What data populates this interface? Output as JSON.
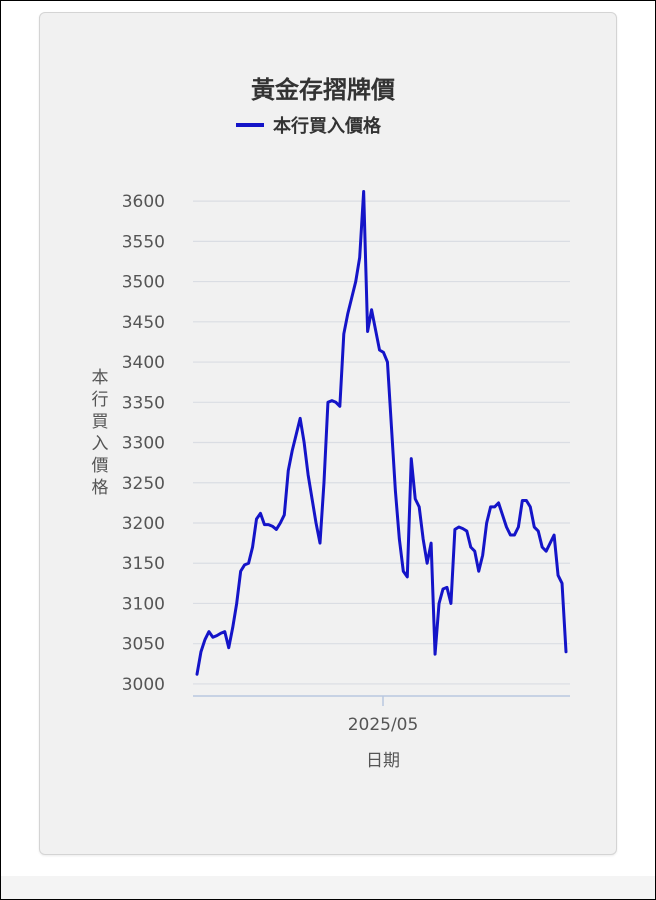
{
  "chart_data": {
    "type": "line",
    "title": "黃金存摺牌價",
    "legend": {
      "position": "top",
      "entries": [
        "本行買入價格"
      ]
    },
    "xlabel": "日期",
    "ylabel": "本行買入價格",
    "x_tick_labels": [
      "2025/05"
    ],
    "y_ticks": [
      3000,
      3050,
      3100,
      3150,
      3200,
      3250,
      3300,
      3350,
      3400,
      3450,
      3500,
      3550,
      3600
    ],
    "ylim": [
      2985,
      3625
    ],
    "grid": "horizontal",
    "colors": {
      "series": "#1414c8",
      "grid": "#dadde3",
      "axis": "#b9c7e0",
      "text": "#555555",
      "title": "#333333"
    },
    "series": [
      {
        "name": "本行買入價格",
        "values": [
          3012,
          3040,
          3055,
          3065,
          3058,
          3060,
          3063,
          3065,
          3045,
          3070,
          3100,
          3140,
          3148,
          3150,
          3170,
          3205,
          3212,
          3198,
          3198,
          3196,
          3192,
          3200,
          3210,
          3265,
          3290,
          3310,
          3330,
          3300,
          3260,
          3230,
          3200,
          3175,
          3250,
          3350,
          3352,
          3350,
          3345,
          3435,
          3460,
          3480,
          3500,
          3530,
          3612,
          3438,
          3465,
          3440,
          3415,
          3412,
          3400,
          3320,
          3240,
          3180,
          3140,
          3133,
          3280,
          3230,
          3220,
          3180,
          3150,
          3175,
          3037,
          3100,
          3118,
          3120,
          3100,
          3192,
          3195,
          3193,
          3190,
          3170,
          3165,
          3140,
          3160,
          3200,
          3220,
          3220,
          3225,
          3210,
          3195,
          3185,
          3185,
          3195,
          3228,
          3228,
          3220,
          3195,
          3190,
          3170,
          3165,
          3175,
          3185,
          3135,
          3125,
          3040
        ]
      }
    ]
  }
}
